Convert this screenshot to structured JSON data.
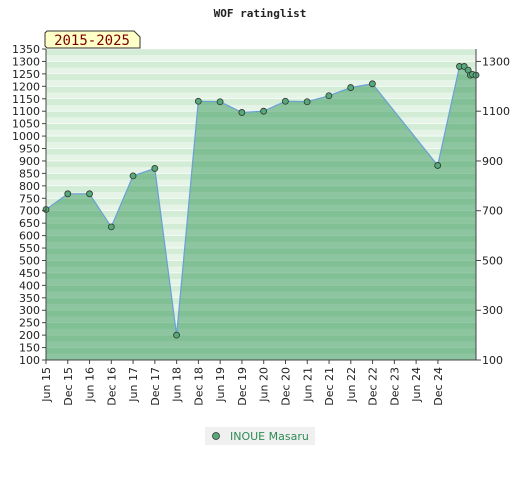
{
  "chart_data": {
    "type": "area",
    "title": "WOF ratinglist",
    "period_label": "2015-2025",
    "ylim": [
      100,
      1350
    ],
    "left_ticks": [
      100,
      150,
      200,
      250,
      300,
      350,
      400,
      450,
      500,
      550,
      600,
      650,
      700,
      750,
      800,
      850,
      900,
      950,
      1000,
      1050,
      1100,
      1150,
      1200,
      1250,
      1300,
      1350
    ],
    "right_ticks": [
      100,
      300,
      500,
      700,
      900,
      1100,
      1300
    ],
    "x_tick_labels": [
      "Jun 15",
      "Dec 15",
      "Jun 16",
      "Dec 16",
      "Jun 17",
      "Dec 17",
      "Jun 18",
      "Dec 18",
      "Jun 19",
      "Dec 19",
      "Jun 20",
      "Dec 20",
      "Jun 21",
      "Dec 21",
      "Jun 22",
      "Dec 22",
      "Dec 23",
      "Jun 24",
      "Dec 24"
    ],
    "x_range": [
      2015.42,
      2025.3
    ],
    "series": [
      {
        "name": "INOUE Masaru",
        "color": "#5b9bd5",
        "marker_color": "#55aa77",
        "x": [
          2015.42,
          2015.92,
          2016.42,
          2016.92,
          2017.42,
          2017.92,
          2018.42,
          2018.92,
          2019.42,
          2019.92,
          2020.42,
          2020.92,
          2021.42,
          2021.92,
          2022.42,
          2022.92,
          2024.42,
          2024.92,
          2025.03,
          2025.12,
          2025.17,
          2025.22,
          2025.3
        ],
        "values": [
          705,
          768,
          768,
          635,
          840,
          870,
          200,
          1140,
          1138,
          1095,
          1100,
          1140,
          1138,
          1162,
          1195,
          1210,
          882,
          1280,
          1280,
          1265,
          1245,
          1248,
          1245
        ]
      }
    ],
    "grid": true,
    "legend_position": "bottom-center"
  }
}
